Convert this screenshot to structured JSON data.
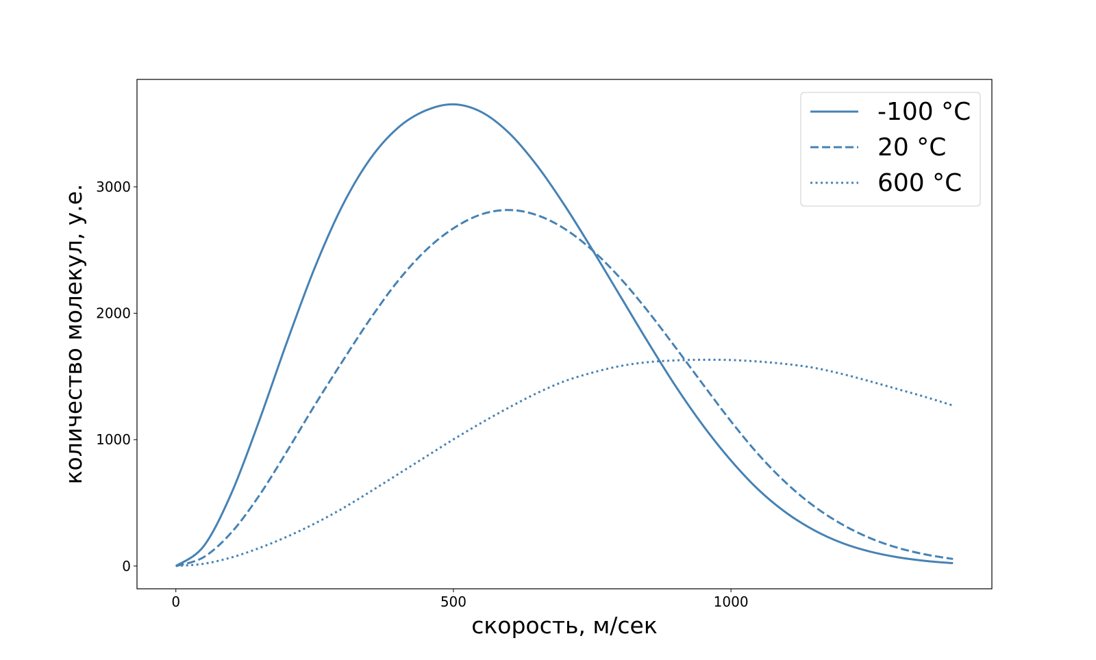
{
  "chart_data": {
    "type": "line",
    "title": "",
    "xlabel": "скорость, м/сек",
    "ylabel": "количество молекул, у.е.",
    "xlim": [
      -70,
      1470
    ],
    "ylim": [
      -180,
      3850
    ],
    "x_ticks": [
      {
        "value": 0,
        "label": "0"
      },
      {
        "value": 500,
        "label": "500"
      },
      {
        "value": 1000,
        "label": "1000"
      }
    ],
    "y_ticks": [
      {
        "value": 0,
        "label": "0"
      },
      {
        "value": 1000,
        "label": "1000"
      },
      {
        "value": 2000,
        "label": "2000"
      },
      {
        "value": 3000,
        "label": "3000"
      }
    ],
    "grid": false,
    "legend_position": "top-right",
    "series": [
      {
        "name": "-100 °C",
        "style": "solid",
        "color": "#4682b4",
        "x": [
          0,
          50,
          100,
          150,
          200,
          250,
          300,
          350,
          400,
          450,
          500,
          550,
          600,
          650,
          700,
          750,
          800,
          850,
          900,
          950,
          1000,
          1050,
          1100,
          1150,
          1200,
          1250,
          1300,
          1350,
          1400
        ],
        "y": [
          0,
          156,
          575,
          1148,
          1771,
          2358,
          2851,
          3221,
          3467,
          3604,
          3653,
          3593,
          3427,
          3172,
          2856,
          2505,
          2140,
          1775,
          1425,
          1110,
          835,
          602,
          420,
          283,
          183,
          115,
          70,
          41,
          23
        ]
      },
      {
        "name": "20 °C",
        "style": "dashed",
        "color": "#4682b4",
        "x": [
          0,
          50,
          100,
          150,
          200,
          250,
          300,
          350,
          400,
          450,
          500,
          550,
          600,
          650,
          700,
          750,
          800,
          850,
          900,
          950,
          1000,
          1050,
          1100,
          1150,
          1200,
          1250,
          1300,
          1350,
          1400
        ],
        "y": [
          0,
          70,
          265,
          557,
          907,
          1271,
          1619,
          1954,
          2255,
          2497,
          2672,
          2782,
          2817,
          2777,
          2669,
          2500,
          2280,
          2018,
          1730,
          1435,
          1145,
          880,
          655,
          472,
          330,
          222,
          145,
          92,
          56
        ]
      },
      {
        "name": "600 °C",
        "style": "dotted",
        "color": "#4682b4",
        "x": [
          0,
          50,
          100,
          150,
          200,
          250,
          300,
          350,
          400,
          450,
          500,
          550,
          600,
          650,
          700,
          750,
          800,
          850,
          900,
          950,
          1000,
          1050,
          1100,
          1150,
          1200,
          1250,
          1300,
          1350,
          1400
        ],
        "y": [
          0,
          18,
          68,
          142,
          232,
          336,
          455,
          588,
          726,
          864,
          1002,
          1132,
          1254,
          1367,
          1462,
          1530,
          1582,
          1613,
          1627,
          1632,
          1630,
          1618,
          1598,
          1568,
          1520,
          1462,
          1400,
          1338,
          1270
        ]
      }
    ]
  }
}
